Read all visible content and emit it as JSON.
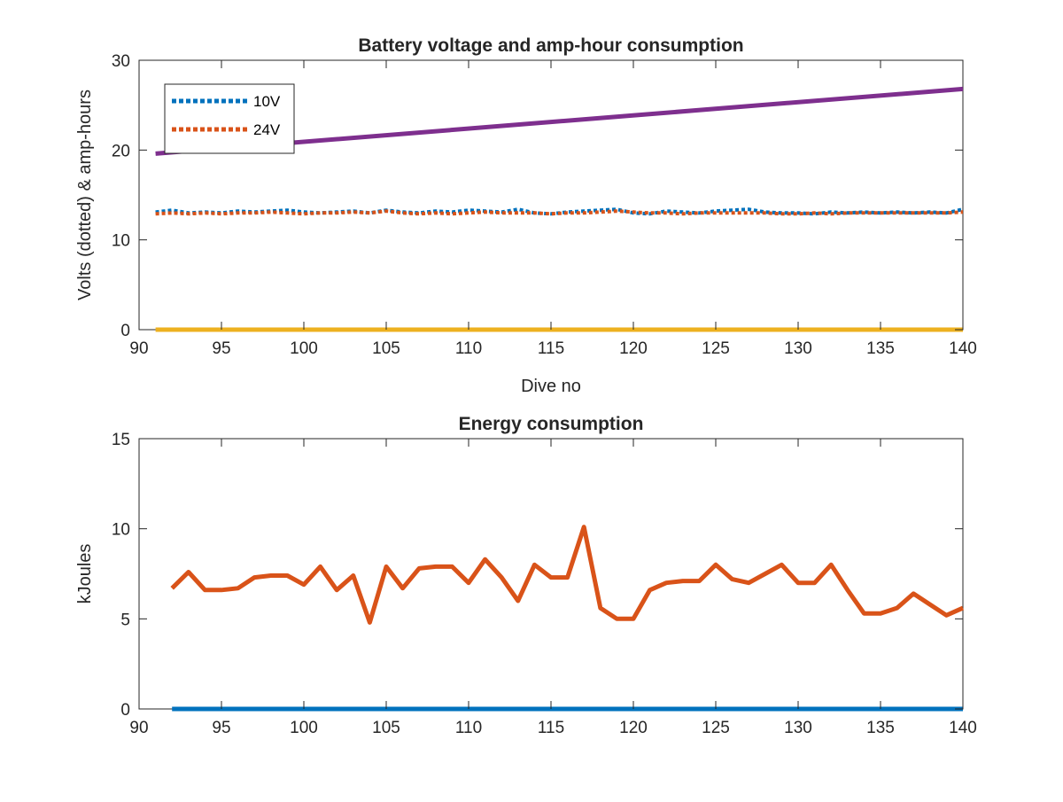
{
  "chart_data": [
    {
      "type": "line",
      "title": "Battery voltage and amp-hour consumption",
      "xlabel": "Dive no",
      "ylabel": "Volts (dotted) & amp-hours",
      "xlim": [
        90,
        140
      ],
      "ylim": [
        0,
        30
      ],
      "xticks": [
        "90",
        "95",
        "100",
        "105",
        "110",
        "115",
        "120",
        "125",
        "130",
        "135",
        "140"
      ],
      "yticks": [
        "0",
        "10",
        "20",
        "30"
      ],
      "legend": {
        "placement": "top-left",
        "entries": [
          "10V",
          "24V"
        ]
      },
      "grid": false,
      "series": [
        {
          "name": "10V",
          "color": "#0072BD",
          "style": "dotted",
          "x": [
            91,
            92,
            93,
            94,
            95,
            96,
            97,
            98,
            99,
            100,
            101,
            102,
            103,
            104,
            105,
            106,
            107,
            108,
            109,
            110,
            111,
            112,
            113,
            114,
            115,
            116,
            117,
            118,
            119,
            120,
            121,
            122,
            123,
            124,
            125,
            126,
            127,
            128,
            129,
            130,
            131,
            132,
            133,
            134,
            135,
            136,
            137,
            138,
            139,
            140
          ],
          "values": [
            13.1,
            13.3,
            13.0,
            13.1,
            13.0,
            13.2,
            13.1,
            13.2,
            13.3,
            13.1,
            13.0,
            13.1,
            13.2,
            13.0,
            13.3,
            13.1,
            13.0,
            13.2,
            13.1,
            13.3,
            13.2,
            13.1,
            13.4,
            13.0,
            12.9,
            13.1,
            13.2,
            13.3,
            13.4,
            13.0,
            12.9,
            13.2,
            13.1,
            13.0,
            13.2,
            13.3,
            13.4,
            13.1,
            13.0,
            13.0,
            12.9,
            13.1,
            13.0,
            13.1,
            13.0,
            13.1,
            13.0,
            13.1,
            13.0,
            13.4
          ]
        },
        {
          "name": "24V",
          "color": "#D95319",
          "style": "dotted",
          "x": [
            91,
            92,
            93,
            94,
            95,
            96,
            97,
            98,
            99,
            100,
            101,
            102,
            103,
            104,
            105,
            106,
            107,
            108,
            109,
            110,
            111,
            112,
            113,
            114,
            115,
            116,
            117,
            118,
            119,
            120,
            121,
            122,
            123,
            124,
            125,
            126,
            127,
            128,
            129,
            130,
            131,
            132,
            133,
            134,
            135,
            136,
            137,
            138,
            139,
            140
          ],
          "values": [
            12.9,
            13.0,
            12.9,
            13.0,
            12.9,
            13.0,
            13.0,
            13.1,
            13.0,
            12.9,
            13.0,
            13.0,
            13.1,
            13.0,
            13.2,
            13.0,
            12.9,
            13.0,
            12.9,
            13.0,
            13.1,
            13.0,
            13.0,
            13.0,
            12.9,
            13.0,
            13.0,
            13.1,
            13.2,
            13.1,
            13.0,
            13.0,
            12.9,
            13.0,
            13.0,
            13.0,
            13.0,
            13.0,
            12.9,
            12.9,
            13.0,
            12.9,
            13.0,
            13.0,
            13.0,
            13.0,
            13.0,
            13.0,
            13.0,
            13.1
          ]
        },
        {
          "color": "#EDB120",
          "style": "solid",
          "x": [
            91,
            140
          ],
          "values": [
            0,
            0
          ]
        },
        {
          "color": "#7E2F8E",
          "style": "solid",
          "x": [
            91,
            140
          ],
          "values": [
            19.6,
            26.8
          ]
        }
      ]
    },
    {
      "type": "line",
      "title": "Energy consumption",
      "xlabel": "",
      "ylabel": "kJoules",
      "xlim": [
        90,
        140
      ],
      "ylim": [
        0,
        15
      ],
      "xticks": [
        "90",
        "95",
        "100",
        "105",
        "110",
        "115",
        "120",
        "125",
        "130",
        "135",
        "140"
      ],
      "yticks": [
        "0",
        "5",
        "10",
        "15"
      ],
      "grid": false,
      "series": [
        {
          "color": "#0072BD",
          "style": "solid",
          "x": [
            92,
            140
          ],
          "values": [
            0,
            0
          ]
        },
        {
          "color": "#D95319",
          "style": "solid",
          "x": [
            92,
            93,
            94,
            95,
            96,
            97,
            98,
            99,
            100,
            101,
            102,
            103,
            104,
            105,
            106,
            107,
            108,
            109,
            110,
            111,
            112,
            113,
            114,
            115,
            116,
            117,
            118,
            119,
            120,
            121,
            122,
            123,
            124,
            125,
            126,
            127,
            128,
            129,
            130,
            131,
            132,
            133,
            134,
            135,
            136,
            137,
            138,
            139,
            140
          ],
          "values": [
            6.7,
            7.6,
            6.6,
            6.6,
            6.7,
            7.3,
            7.4,
            7.4,
            6.9,
            7.9,
            6.6,
            7.4,
            4.8,
            7.9,
            6.7,
            7.8,
            7.9,
            7.9,
            7.0,
            8.3,
            7.3,
            6.0,
            8.0,
            7.3,
            7.3,
            10.1,
            5.6,
            5.0,
            5.0,
            6.6,
            7.0,
            7.1,
            7.1,
            8.0,
            7.2,
            7.0,
            7.5,
            8.0,
            7.0,
            7.0,
            8.0,
            6.6,
            5.3,
            5.3,
            5.6,
            6.4,
            5.8,
            5.2,
            5.6
          ]
        }
      ]
    }
  ]
}
